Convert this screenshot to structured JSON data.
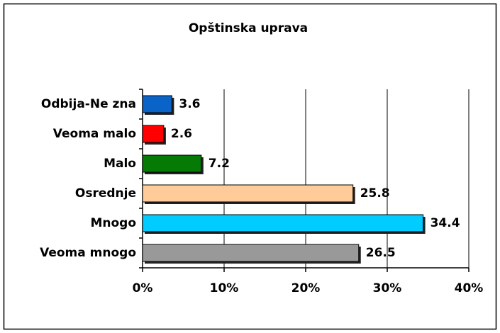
{
  "chart_data": {
    "type": "barh",
    "title": "Opštinska uprava",
    "categories": [
      "Odbija-Ne zna",
      "Veoma malo",
      "Malo",
      "Osrednje",
      "Mnogo",
      "Veoma mnogo"
    ],
    "values": [
      3.6,
      2.6,
      7.2,
      25.8,
      34.4,
      26.5
    ],
    "colors": [
      "#0a64c8",
      "#ff0000",
      "#057a05",
      "#ffcc99",
      "#00ccff",
      "#999999"
    ],
    "xlim": [
      0,
      40
    ],
    "xticks": [
      {
        "value": 0,
        "label": "0%"
      },
      {
        "value": 10,
        "label": "10%"
      },
      {
        "value": 20,
        "label": "20%"
      },
      {
        "value": 30,
        "label": "30%"
      },
      {
        "value": 40,
        "label": "40%"
      }
    ],
    "grid": true
  }
}
